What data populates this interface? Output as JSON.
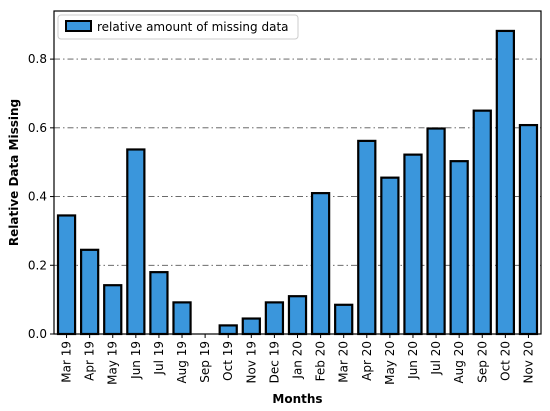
{
  "chart_data": {
    "type": "bar",
    "categories": [
      "Mar 19",
      "Apr 19",
      "May 19",
      "Jun 19",
      "Jul 19",
      "Aug 19",
      "Sep 19",
      "Oct 19",
      "Nov 19",
      "Dec 19",
      "Jan 20",
      "Feb 20",
      "Mar 20",
      "Apr 20",
      "May 20",
      "Jun 20",
      "Jul 20",
      "Aug 20",
      "Sep 20",
      "Oct 20",
      "Nov 20"
    ],
    "series": [
      {
        "name": "relative amount of missing data",
        "values": [
          0.345,
          0.245,
          0.142,
          0.537,
          0.18,
          0.092,
          0.0,
          0.025,
          0.045,
          0.092,
          0.11,
          0.41,
          0.085,
          0.562,
          0.455,
          0.522,
          0.598,
          0.503,
          0.65,
          0.882,
          0.608
        ]
      }
    ],
    "xlabel": "Months",
    "ylabel": "Relative Data Missing",
    "ylim": [
      0,
      0.94
    ],
    "yticks": [
      0.0,
      0.2,
      0.4,
      0.6,
      0.8
    ],
    "ytick_labels": [
      "0.0",
      "0.2",
      "0.4",
      "0.6",
      "0.8"
    ],
    "grid": "horizontal dash-dot",
    "legend_position": "top-left",
    "colors": {
      "bar_fill": "#3a96dc",
      "bar_edge": "#000000",
      "grid": "#555555"
    }
  }
}
